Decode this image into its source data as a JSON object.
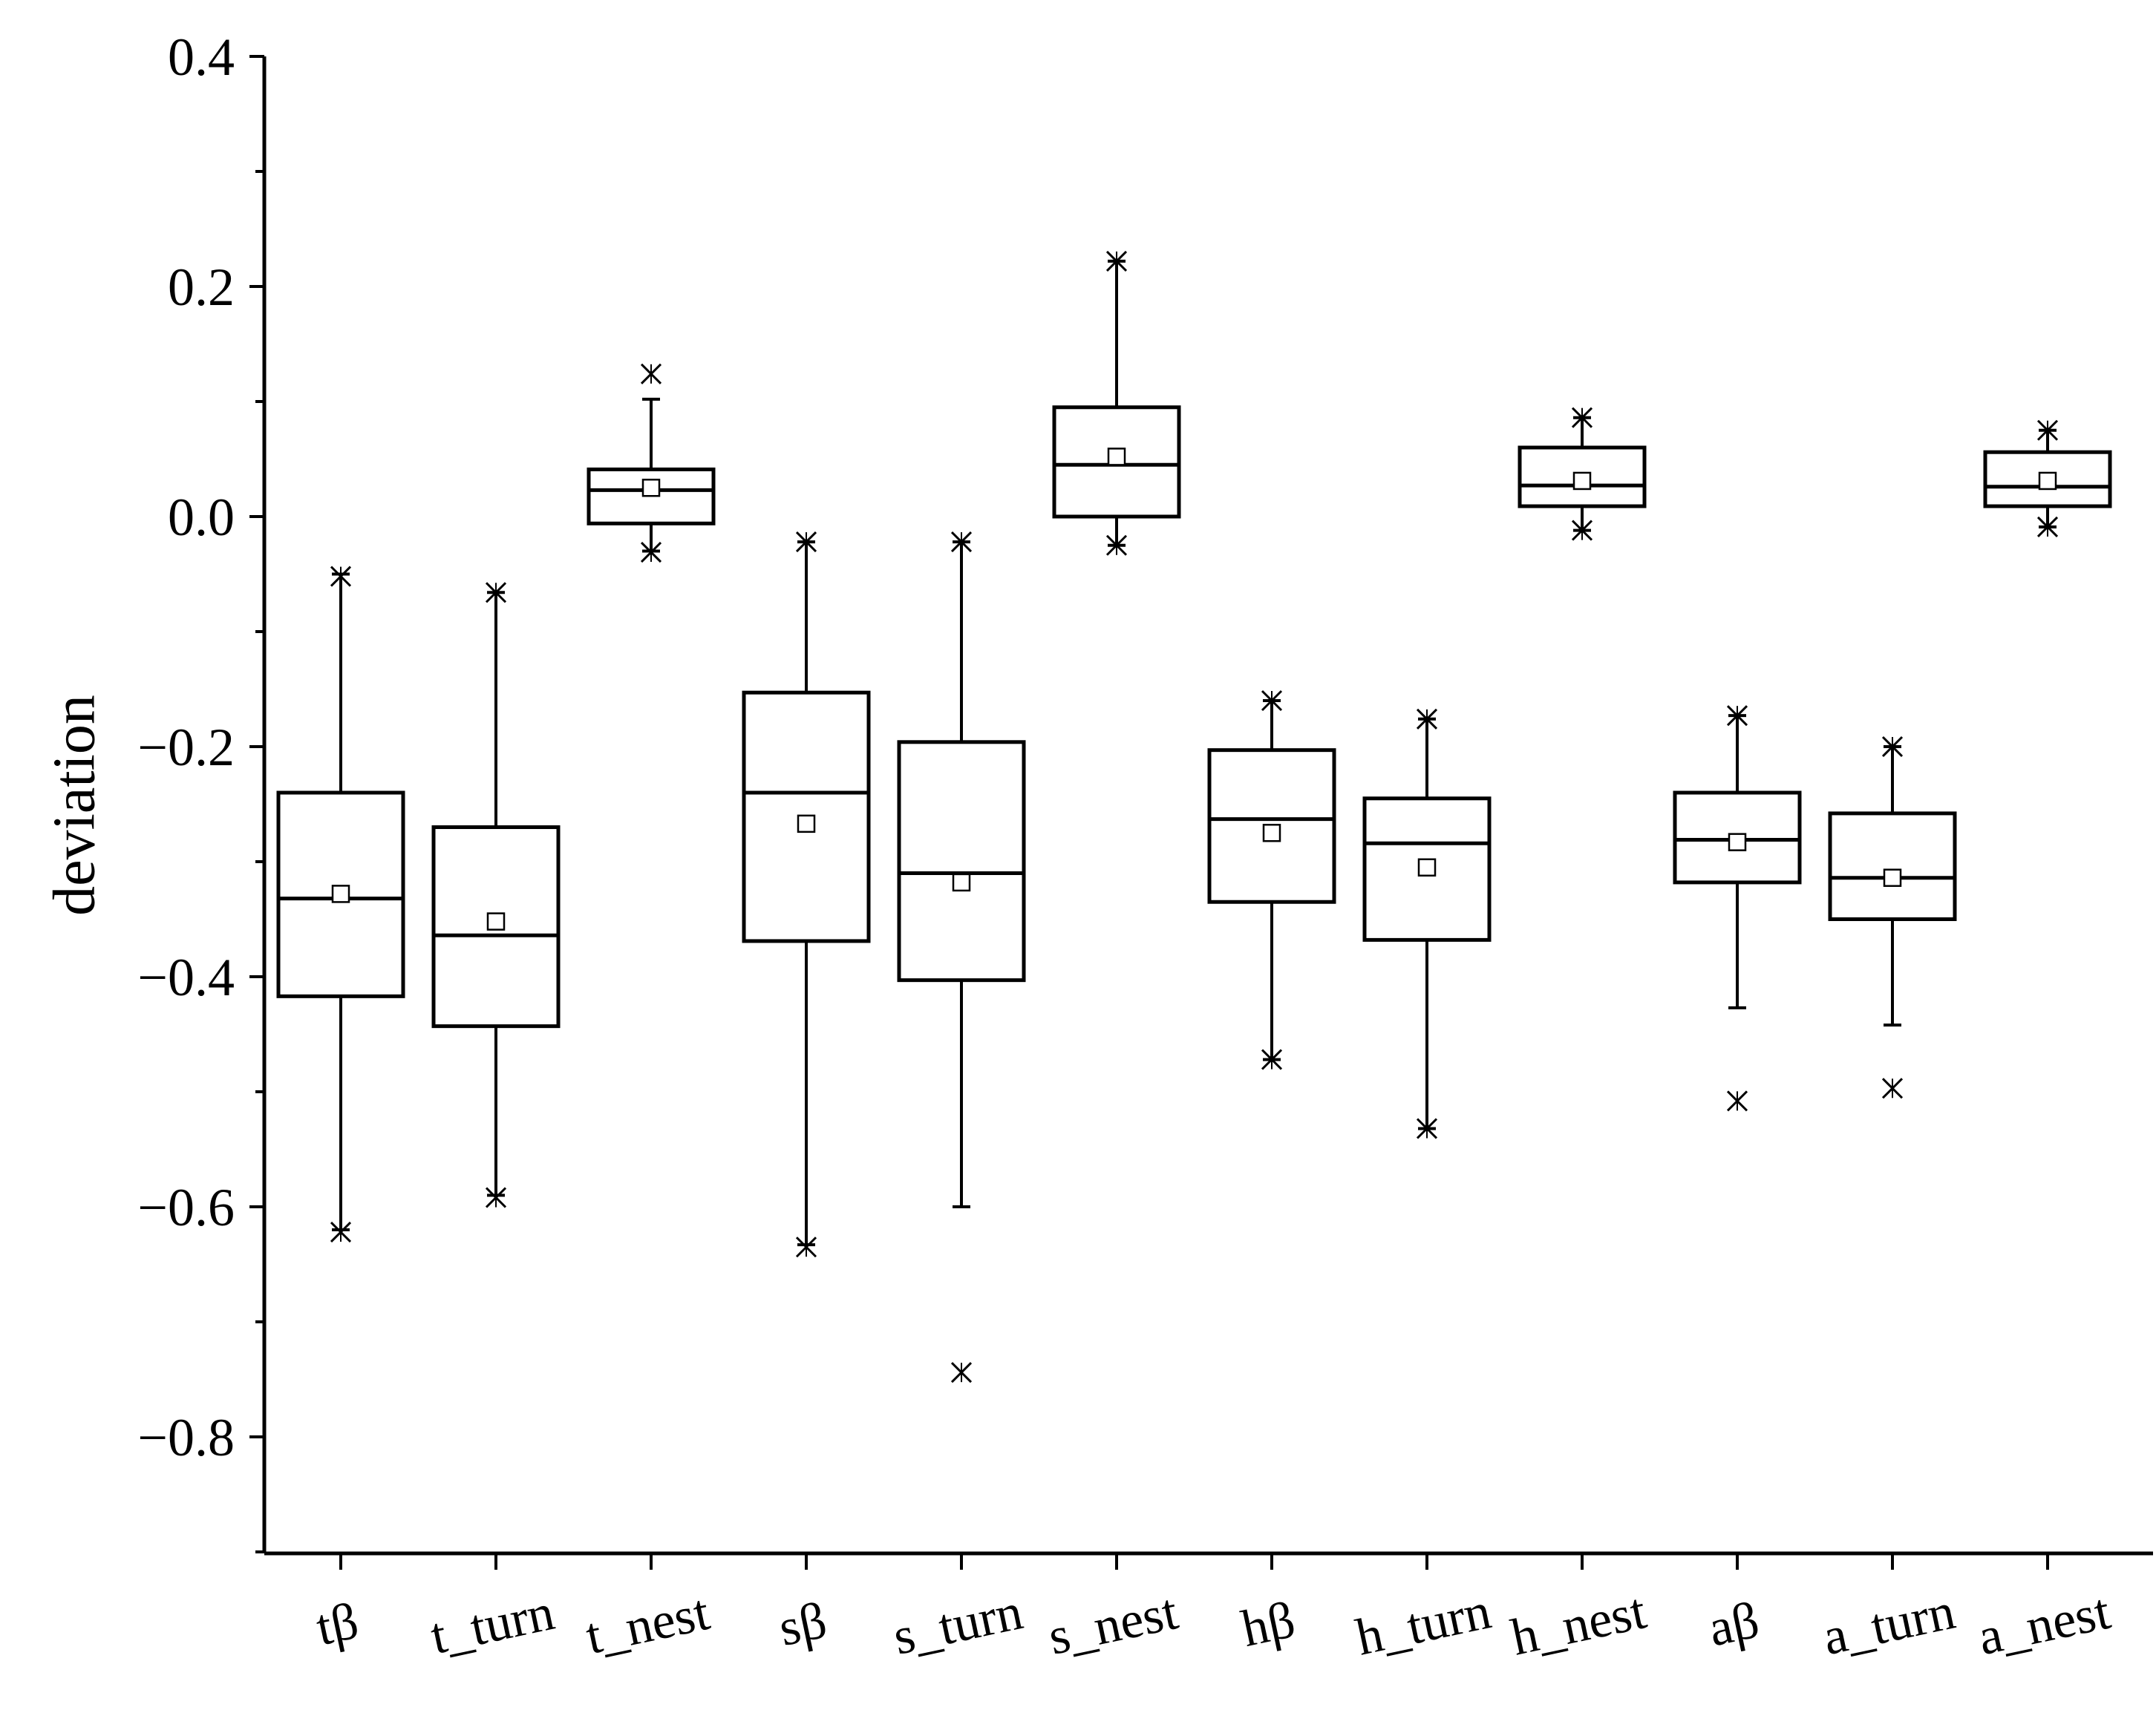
{
  "chart_data": {
    "type": "box",
    "title": "",
    "xlabel": "",
    "ylabel": "deviation",
    "ylim": [
      -0.9,
      0.4
    ],
    "yticks": [
      "0.4",
      "0.2",
      "0.0",
      "−0.2",
      "−0.4",
      "−0.6",
      "−0.8"
    ],
    "ytick_values": [
      0.4,
      0.2,
      0.0,
      -0.2,
      -0.4,
      -0.6,
      -0.8
    ],
    "grid": false,
    "categories": [
      "tβ",
      "t_turn",
      "t_nest",
      "sβ",
      "s_turn",
      "s_nest",
      "hβ",
      "h_turn",
      "h_nest",
      "aβ",
      "a_turn",
      "a_nest"
    ],
    "boxes": [
      {
        "label": "tβ",
        "whisker_low": -0.62,
        "q1": -0.417,
        "median": -0.332,
        "q3": -0.24,
        "whisker_high": -0.05,
        "mean": -0.328,
        "outliers": [
          -0.622,
          -0.052
        ]
      },
      {
        "label": "t_turn",
        "whisker_low": -0.59,
        "q1": -0.443,
        "median": -0.364,
        "q3": -0.27,
        "whisker_high": -0.066,
        "mean": -0.352,
        "outliers": [
          -0.592,
          -0.066
        ]
      },
      {
        "label": "t_nest",
        "whisker_low": -0.03,
        "q1": -0.006,
        "median": 0.023,
        "q3": 0.041,
        "whisker_high": 0.102,
        "mean": 0.025,
        "outliers": [
          -0.031,
          0.124
        ]
      },
      {
        "label": "sβ",
        "whisker_low": -0.633,
        "q1": -0.369,
        "median": -0.24,
        "q3": -0.153,
        "whisker_high": -0.022,
        "mean": -0.267,
        "outliers": [
          -0.635,
          -0.022
        ]
      },
      {
        "label": "s_turn",
        "whisker_low": -0.6,
        "q1": -0.403,
        "median": -0.31,
        "q3": -0.196,
        "whisker_high": -0.022,
        "mean": -0.318,
        "outliers": [
          -0.744,
          -0.022
        ]
      },
      {
        "label": "s_nest",
        "whisker_low": -0.025,
        "q1": 0.0,
        "median": 0.045,
        "q3": 0.095,
        "whisker_high": 0.222,
        "mean": 0.052,
        "outliers": [
          -0.025,
          0.222
        ]
      },
      {
        "label": "hβ",
        "whisker_low": -0.472,
        "q1": -0.335,
        "median": -0.263,
        "q3": -0.203,
        "whisker_high": -0.16,
        "mean": -0.275,
        "outliers": [
          -0.472,
          -0.16
        ]
      },
      {
        "label": "h_turn",
        "whisker_low": -0.532,
        "q1": -0.368,
        "median": -0.284,
        "q3": -0.245,
        "whisker_high": -0.176,
        "mean": -0.305,
        "outliers": [
          -0.532,
          -0.176
        ]
      },
      {
        "label": "h_nest",
        "whisker_low": -0.012,
        "q1": 0.009,
        "median": 0.027,
        "q3": 0.06,
        "whisker_high": 0.086,
        "mean": 0.031,
        "outliers": [
          -0.012,
          0.086
        ]
      },
      {
        "label": "aβ",
        "whisker_low": -0.427,
        "q1": -0.318,
        "median": -0.281,
        "q3": -0.24,
        "whisker_high": -0.173,
        "mean": -0.283,
        "outliers": [
          -0.508,
          -0.173
        ]
      },
      {
        "label": "a_turn",
        "whisker_low": -0.442,
        "q1": -0.35,
        "median": -0.314,
        "q3": -0.258,
        "whisker_high": -0.2,
        "mean": -0.314,
        "outliers": [
          -0.497,
          -0.2
        ]
      },
      {
        "label": "a_nest",
        "whisker_low": -0.009,
        "q1": 0.009,
        "median": 0.026,
        "q3": 0.056,
        "whisker_high": 0.075,
        "mean": 0.031,
        "outliers": [
          -0.009,
          0.075
        ]
      }
    ]
  }
}
